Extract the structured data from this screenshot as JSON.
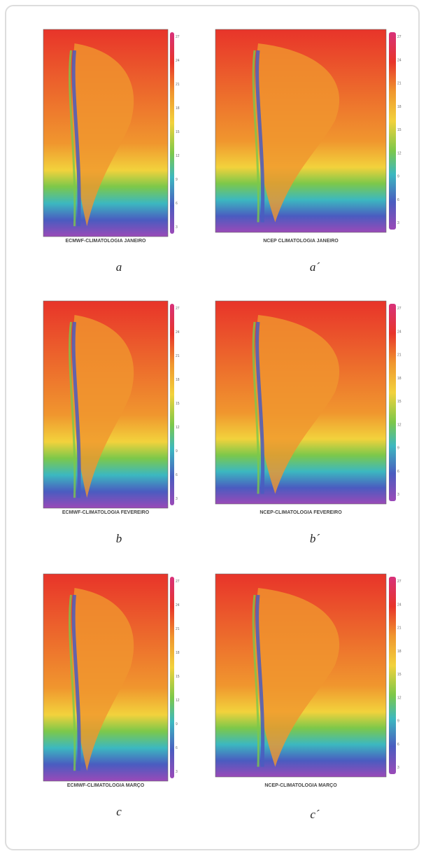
{
  "panels": [
    {
      "title": "ECMWF-CLIMATOLOGIA JANEIRO",
      "label": "a",
      "colorbar": [
        "27",
        "24",
        "21",
        "18",
        "15",
        "12",
        "9",
        "6",
        "3"
      ]
    },
    {
      "title": "NCEP CLIMATOLOGIA JANEIRO",
      "label": "a´",
      "colorbar": [
        "27",
        "24",
        "21",
        "18",
        "15",
        "12",
        "9",
        "6",
        "3"
      ]
    },
    {
      "title": "ECMWF-CLIMATOLOGIA FEVEREIRO",
      "label": "b",
      "colorbar": [
        "27",
        "24",
        "21",
        "18",
        "15",
        "12",
        "9",
        "6",
        "3"
      ]
    },
    {
      "title": "NCEP-CLIMATOLOGIA FEVEREIRO",
      "label": "b´",
      "colorbar": [
        "27",
        "24",
        "21",
        "18",
        "15",
        "12",
        "9",
        "6",
        "3"
      ]
    },
    {
      "title": "ECMWF-CLIMATOLOGIA MARÇO",
      "label": "c",
      "colorbar": [
        "27",
        "24",
        "21",
        "18",
        "15",
        "12",
        "9",
        "6",
        "3"
      ]
    },
    {
      "title": "NCEP-CLIMATOLOGIA MARÇO",
      "label": "c´",
      "colorbar": [
        "27",
        "24",
        "21",
        "18",
        "15",
        "12",
        "9",
        "6",
        "3"
      ]
    }
  ]
}
